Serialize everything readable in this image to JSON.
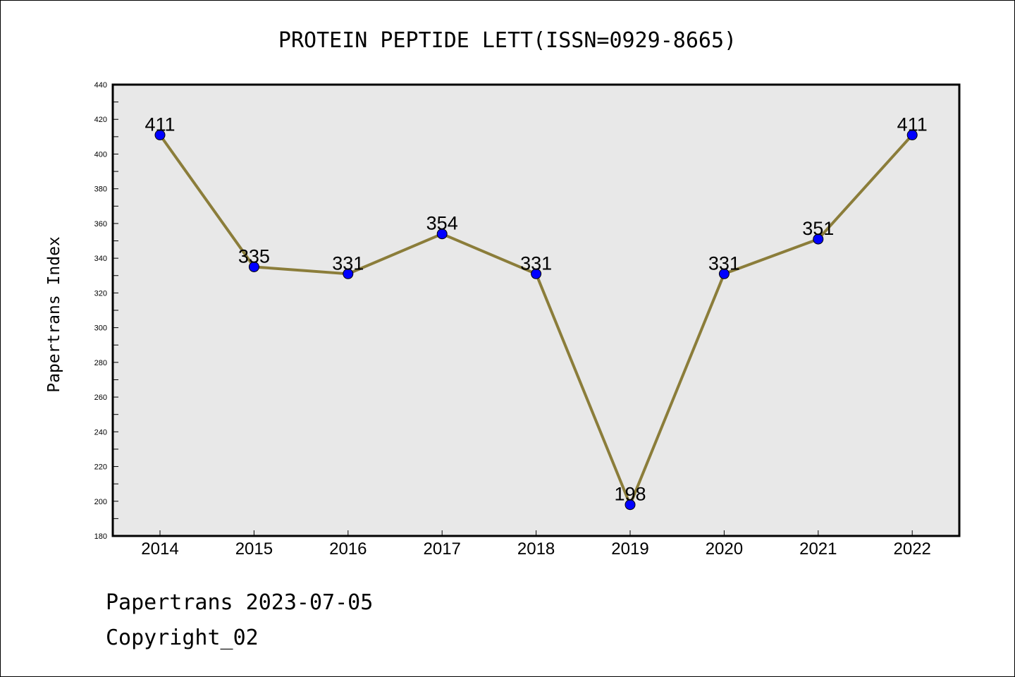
{
  "chart_data": {
    "type": "line",
    "title": "PROTEIN PEPTIDE LETT(ISSN=0929-8665)",
    "ylabel": "Papertrans Index",
    "xlabel": "",
    "categories": [
      "2014",
      "2015",
      "2016",
      "2017",
      "2018",
      "2019",
      "2020",
      "2021",
      "2022"
    ],
    "values": [
      411,
      335,
      331,
      354,
      331,
      198,
      331,
      351,
      411
    ],
    "ylim": [
      180,
      440
    ],
    "yticks": [
      180,
      200,
      220,
      240,
      260,
      280,
      300,
      320,
      340,
      360,
      380,
      400,
      420,
      440
    ],
    "line_color": "#8B7D3A",
    "marker_color": "#0000FF",
    "plot_background": "#E8E8E8",
    "grid": false
  },
  "footer": {
    "line1": "Papertrans 2023-07-05",
    "line2": "Copyright_02"
  }
}
